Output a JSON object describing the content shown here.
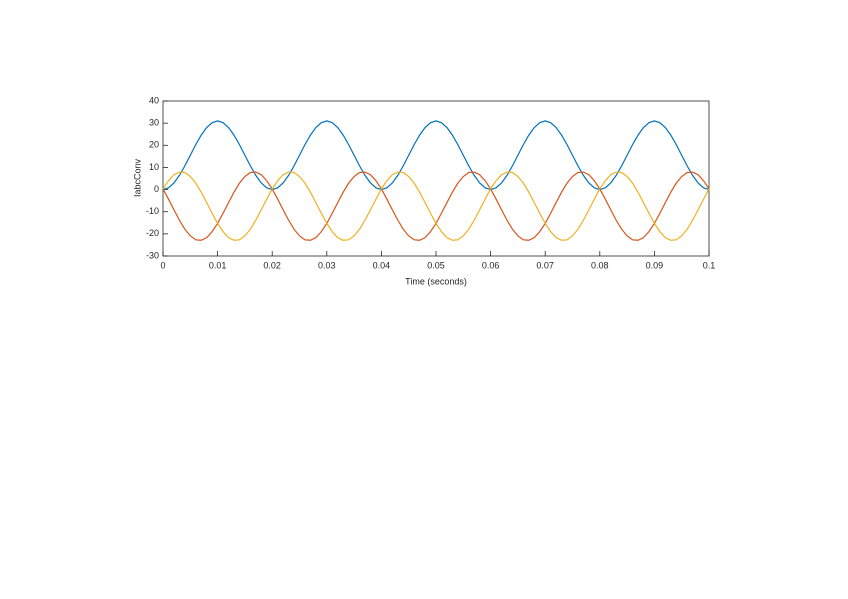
{
  "chart_data": {
    "type": "line",
    "xlabel": "Time (seconds)",
    "ylabel": "IabcConv",
    "xlim": [
      0,
      0.1
    ],
    "xticks": [
      0,
      0.01,
      0.02,
      0.03,
      0.04,
      0.05,
      0.06,
      0.07,
      0.08,
      0.09,
      0.1
    ],
    "ylim": [
      -30,
      40
    ],
    "yticks": [
      -30,
      -20,
      -10,
      0,
      10,
      20,
      30,
      40
    ],
    "x": [
      0,
      0.001,
      0.002,
      0.003,
      0.004,
      0.005,
      0.006,
      0.007,
      0.008,
      0.009,
      0.01,
      0.011,
      0.012,
      0.013,
      0.014,
      0.015,
      0.016,
      0.017,
      0.018,
      0.019,
      0.02,
      0.021,
      0.022,
      0.023,
      0.024,
      0.025,
      0.026,
      0.027,
      0.028,
      0.029,
      0.03,
      0.031,
      0.032,
      0.033,
      0.034,
      0.035,
      0.036,
      0.037,
      0.038,
      0.039,
      0.04,
      0.041,
      0.042,
      0.043,
      0.044,
      0.045,
      0.046,
      0.047,
      0.048,
      0.049,
      0.05,
      0.051,
      0.052,
      0.053,
      0.054,
      0.055,
      0.056,
      0.057,
      0.058,
      0.059,
      0.06,
      0.061,
      0.062,
      0.063,
      0.064,
      0.065,
      0.066,
      0.067,
      0.068,
      0.069,
      0.07,
      0.071,
      0.072,
      0.073,
      0.074,
      0.075,
      0.076,
      0.077,
      0.078,
      0.079,
      0.08,
      0.081,
      0.082,
      0.083,
      0.084,
      0.085,
      0.086,
      0.087,
      0.088,
      0.089,
      0.09,
      0.091,
      0.092,
      0.093,
      0.094,
      0.095,
      0.096,
      0.097,
      0.098,
      0.099,
      0.1
    ],
    "series": [
      {
        "color": "#0072bd",
        "values": [
          0,
          0.8,
          3.0,
          6.4,
          10.7,
          15.5,
          20.3,
          24.6,
          28.0,
          30.2,
          31.0,
          30.2,
          28.0,
          24.6,
          20.3,
          15.5,
          10.7,
          6.4,
          3.0,
          0.8,
          0,
          0.8,
          3.0,
          6.4,
          10.7,
          15.5,
          20.3,
          24.6,
          28.0,
          30.2,
          31.0,
          30.2,
          28.0,
          24.6,
          20.3,
          15.5,
          10.7,
          6.4,
          3.0,
          0.8,
          0,
          0.8,
          3.0,
          6.4,
          10.7,
          15.5,
          20.3,
          24.6,
          28.0,
          30.2,
          31.0,
          30.2,
          28.0,
          24.6,
          20.3,
          15.5,
          10.7,
          6.4,
          3.0,
          0.8,
          0,
          0.8,
          3.0,
          6.4,
          10.7,
          15.5,
          20.3,
          24.6,
          28.0,
          30.2,
          31.0,
          30.2,
          28.0,
          24.6,
          20.3,
          15.5,
          10.7,
          6.4,
          3.0,
          0.8,
          0,
          0.8,
          3.0,
          6.4,
          10.7,
          15.5,
          20.3,
          24.6,
          28.0,
          30.2,
          31.0,
          30.2,
          28.0,
          24.6,
          20.3,
          15.5,
          10.7,
          6.4,
          3.0,
          0.8,
          0
        ]
      },
      {
        "color": "#d95319",
        "values": [
          0.3,
          -4.3,
          -9.1,
          -13.8,
          -17.9,
          -20.9,
          -22.7,
          -22.9,
          -21.7,
          -19.0,
          -15.3,
          -10.7,
          -5.9,
          -1.2,
          2.9,
          5.9,
          7.7,
          7.9,
          6.7,
          4.0,
          0.3,
          -4.3,
          -9.1,
          -13.8,
          -17.9,
          -20.9,
          -22.7,
          -22.9,
          -21.7,
          -19.0,
          -15.3,
          -10.7,
          -5.9,
          -1.2,
          2.9,
          5.9,
          7.7,
          7.9,
          6.7,
          4.0,
          0.3,
          -4.3,
          -9.1,
          -13.8,
          -17.9,
          -20.9,
          -22.7,
          -22.9,
          -21.7,
          -19.0,
          -15.3,
          -10.7,
          -5.9,
          -1.2,
          2.9,
          5.9,
          7.7,
          7.9,
          6.7,
          4.0,
          0.3,
          -4.3,
          -9.1,
          -13.8,
          -17.9,
          -20.9,
          -22.7,
          -22.9,
          -21.7,
          -19.0,
          -15.3,
          -10.7,
          -5.9,
          -1.2,
          2.9,
          5.9,
          7.7,
          7.9,
          6.7,
          4.0,
          0.3,
          -4.3,
          -9.1,
          -13.8,
          -17.9,
          -20.9,
          -22.7,
          -22.9,
          -21.7,
          -19.0,
          -15.3,
          -10.7,
          -5.9,
          -1.2,
          2.9,
          5.9,
          7.7,
          7.9,
          6.7,
          4.0,
          0.3
        ]
      },
      {
        "color": "#edb120",
        "values": [
          0.3,
          4.0,
          6.7,
          7.9,
          7.7,
          5.9,
          2.9,
          -1.2,
          -5.9,
          -10.7,
          -15.3,
          -19.0,
          -21.7,
          -22.9,
          -22.7,
          -20.9,
          -17.9,
          -13.8,
          -9.1,
          -4.3,
          0.3,
          4.0,
          6.7,
          7.9,
          7.7,
          5.9,
          2.9,
          -1.2,
          -5.9,
          -10.7,
          -15.3,
          -19.0,
          -21.7,
          -22.9,
          -22.7,
          -20.9,
          -17.9,
          -13.8,
          -9.1,
          -4.3,
          0.3,
          4.0,
          6.7,
          7.9,
          7.7,
          5.9,
          2.9,
          -1.2,
          -5.9,
          -10.7,
          -15.3,
          -19.0,
          -21.7,
          -22.9,
          -22.7,
          -20.9,
          -17.9,
          -13.8,
          -9.1,
          -4.3,
          0.3,
          4.0,
          6.7,
          7.9,
          7.7,
          5.9,
          2.9,
          -1.2,
          -5.9,
          -10.7,
          -15.3,
          -19.0,
          -21.7,
          -22.9,
          -22.7,
          -20.9,
          -17.9,
          -13.8,
          -9.1,
          -4.3,
          0.3,
          4.0,
          6.7,
          7.9,
          7.7,
          5.9,
          2.9,
          -1.2,
          -5.9,
          -10.7,
          -15.3,
          -19.0,
          -21.7,
          -22.9,
          -22.7,
          -20.9,
          -17.9,
          -13.8,
          -9.1,
          -4.3,
          0.3
        ]
      }
    ]
  }
}
